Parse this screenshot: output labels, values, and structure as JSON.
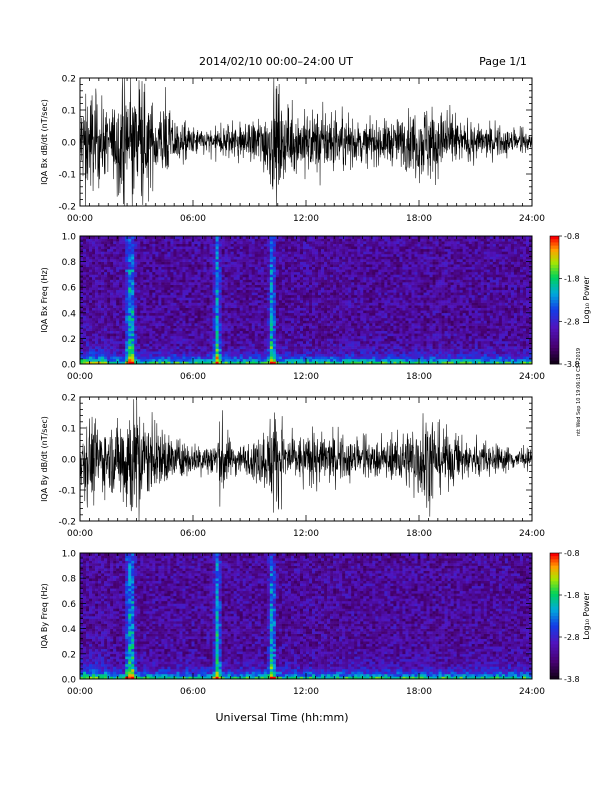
{
  "header": {
    "title": "2014/02/10   00:00–24:00 UT",
    "page": "Page 1/1"
  },
  "footer": {
    "xlabel": "Universal Time (hh:mm)",
    "side_note": "ntt Wed Sep 10 19:06:19 CST 2019"
  },
  "chart_data": [
    {
      "type": "line",
      "ylabel": "IQA Bx dB/dt (nT/sec)",
      "ylim": [
        -0.2,
        0.2
      ],
      "yticks": [
        "0.2",
        "0.1",
        "0.0",
        "-0.1",
        "-0.2"
      ],
      "xticks": [
        "00:00",
        "06:00",
        "12:00",
        "18:00",
        "24:00"
      ],
      "xlim_hours": [
        0,
        24
      ],
      "series_color": "#000000",
      "envelope": {
        "hours": [
          0,
          0.5,
          1,
          1.5,
          2,
          2.5,
          2.7,
          3,
          3.5,
          4,
          4.5,
          5,
          6,
          7,
          8,
          9,
          10,
          10.3,
          10.6,
          11,
          12,
          13,
          14,
          15,
          16,
          17,
          18,
          18.5,
          19,
          20,
          21,
          22,
          23,
          24
        ],
        "amplitude": [
          0.13,
          0.18,
          0.15,
          0.1,
          0.14,
          0.2,
          0.22,
          0.2,
          0.16,
          0.12,
          0.13,
          0.08,
          0.05,
          0.04,
          0.07,
          0.06,
          0.12,
          0.2,
          0.16,
          0.1,
          0.1,
          0.11,
          0.08,
          0.06,
          0.07,
          0.08,
          0.12,
          0.14,
          0.11,
          0.07,
          0.06,
          0.05,
          0.04,
          0.03
        ]
      }
    },
    {
      "type": "heatmap",
      "ylabel": "IQA Bx Freq (Hz)",
      "ylim": [
        0.0,
        1.0
      ],
      "yticks": [
        "1.0",
        "0.8",
        "0.6",
        "0.4",
        "0.2",
        "0.0"
      ],
      "xticks": [
        "00:00",
        "06:00",
        "12:00",
        "18:00",
        "24:00"
      ],
      "colorbar": {
        "label": "Log₁₀ Power",
        "range": [
          -3.8,
          -0.8
        ],
        "ticks": [
          "-0.8",
          "-1.8",
          "-2.8",
          "-3.8"
        ]
      },
      "bursts_hours": [
        2.6,
        2.75,
        7.3,
        10.2
      ]
    },
    {
      "type": "line",
      "ylabel": "IQA By dB/dt (nT/sec)",
      "ylim": [
        -0.2,
        0.2
      ],
      "yticks": [
        "0.2",
        "0.1",
        "0.0",
        "-0.1",
        "-0.2"
      ],
      "xticks": [
        "00:00",
        "06:00",
        "12:00",
        "18:00",
        "24:00"
      ],
      "xlim_hours": [
        0,
        24
      ],
      "series_color": "#000000",
      "envelope": {
        "hours": [
          0,
          0.5,
          1,
          1.5,
          2,
          2.5,
          2.7,
          3,
          3.5,
          4,
          4.5,
          5,
          6,
          7,
          7.6,
          8,
          9,
          10,
          10.3,
          10.6,
          11,
          12,
          13,
          14,
          15,
          16,
          17,
          18,
          18.5,
          19,
          20,
          21,
          22,
          23,
          24
        ],
        "amplitude": [
          0.1,
          0.16,
          0.13,
          0.1,
          0.13,
          0.22,
          0.23,
          0.2,
          0.14,
          0.1,
          0.11,
          0.07,
          0.05,
          0.06,
          0.15,
          0.06,
          0.05,
          0.12,
          0.2,
          0.14,
          0.08,
          0.08,
          0.09,
          0.07,
          0.06,
          0.06,
          0.08,
          0.14,
          0.16,
          0.12,
          0.08,
          0.06,
          0.05,
          0.04,
          0.03
        ]
      }
    },
    {
      "type": "heatmap",
      "ylabel": "IQA By Freq (Hz)",
      "ylim": [
        0.0,
        1.0
      ],
      "yticks": [
        "1.0",
        "0.8",
        "0.6",
        "0.4",
        "0.2",
        "0.0"
      ],
      "xticks": [
        "00:00",
        "06:00",
        "12:00",
        "18:00",
        "24:00"
      ],
      "colorbar": {
        "label": "Log₁₀ Power",
        "range": [
          -3.8,
          -0.8
        ],
        "ticks": [
          "-0.8",
          "-1.8",
          "-2.8",
          "-3.8"
        ]
      },
      "bursts_hours": [
        2.6,
        2.75,
        7.3,
        10.2
      ]
    }
  ]
}
